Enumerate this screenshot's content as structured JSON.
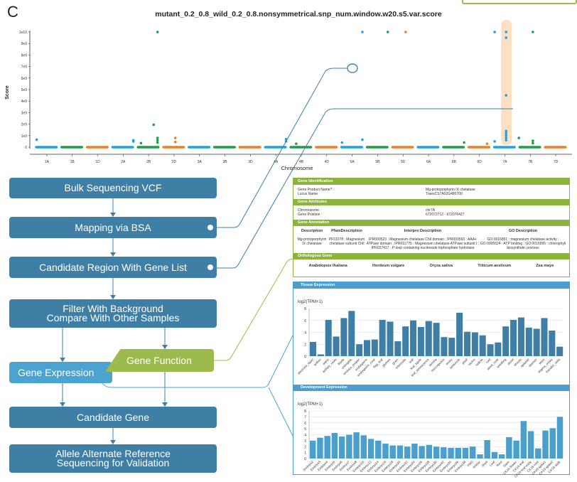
{
  "panel_label": "C",
  "chart_data": [
    {
      "type": "scatter",
      "title": "mutant_0.2_0.8_wild_0.2_0.8.nonsymmetrical.snp_num.window.w20.s5.var.score",
      "xlabel": "Chromosome",
      "ylabel": "Score",
      "ylim": [
        0,
        10000000000
      ],
      "yticks": [
        "0",
        "1e9",
        "2e9",
        "3e9",
        "4e9",
        "5e9",
        "6e9",
        "7e9",
        "8e9",
        "9e9",
        "1e10"
      ],
      "categories": [
        "1A",
        "1B",
        "1D",
        "2A",
        "2B",
        "2D",
        "3A",
        "3B",
        "3D",
        "4A",
        "4B",
        "4D",
        "5A",
        "5B",
        "5D",
        "6A",
        "6B",
        "6D",
        "7A",
        "7B",
        "7D"
      ],
      "colors": {
        "A": "#1aa3e8",
        "B": "#1e9e4a",
        "D": "#f07f22"
      },
      "highlight_chromosome": "7A",
      "highlight_color": "#fbe0c3",
      "baseline_score": 0,
      "outliers": [
        {
          "chr": "1A",
          "pos": 0.1,
          "score": 650000000
        },
        {
          "chr": "2A",
          "pos": 0.9,
          "score": 600000000
        },
        {
          "chr": "2A",
          "pos": 0.9,
          "score": 500000000
        },
        {
          "chr": "2B",
          "pos": 0.2,
          "score": 350000000
        },
        {
          "chr": "2B",
          "pos": 0.7,
          "score": 1950000000
        },
        {
          "chr": "2B",
          "pos": 0.85,
          "score": 10000000000
        },
        {
          "chr": "2B",
          "pos": 0.85,
          "score": 800000000
        },
        {
          "chr": "2B",
          "pos": 0.85,
          "score": 600000000
        },
        {
          "chr": "2B",
          "pos": 0.85,
          "score": 400000000
        },
        {
          "chr": "2D",
          "pos": 0.55,
          "score": 800000000
        },
        {
          "chr": "2D",
          "pos": 0.55,
          "score": 450000000
        },
        {
          "chr": "4A",
          "pos": 0.9,
          "score": 700000000
        },
        {
          "chr": "4A",
          "pos": 0.9,
          "score": 500000000
        },
        {
          "chr": "4B",
          "pos": 0.3,
          "score": 300000000
        },
        {
          "chr": "5A",
          "pos": 0.1,
          "score": 400000000
        },
        {
          "chr": "5A",
          "pos": 0.9,
          "score": 10000000000
        },
        {
          "chr": "5A",
          "pos": 0.9,
          "score": 650000000
        },
        {
          "chr": "5B",
          "pos": 0.9,
          "score": 10000000000
        },
        {
          "chr": "5D",
          "pos": 0.6,
          "score": 10000000000
        },
        {
          "chr": "6B",
          "pos": 0.9,
          "score": 400000000
        },
        {
          "chr": "6D",
          "pos": 0.8,
          "score": 300000000
        },
        {
          "chr": "7A",
          "pos": 0.1,
          "score": 10000000000
        },
        {
          "chr": "7A",
          "pos": 0.1,
          "score": 500000000
        },
        {
          "chr": "7A",
          "pos": 0.55,
          "score": 10000000000
        },
        {
          "chr": "7A",
          "pos": 0.55,
          "score": 9500000000
        },
        {
          "chr": "7A",
          "pos": 0.55,
          "score": 4500000000
        },
        {
          "chr": "7A",
          "pos": 0.55,
          "score": 1400000000
        },
        {
          "chr": "7A",
          "pos": 0.55,
          "score": 1200000000
        },
        {
          "chr": "7A",
          "pos": 0.55,
          "score": 1000000000
        },
        {
          "chr": "7A",
          "pos": 0.55,
          "score": 800000000
        },
        {
          "chr": "7A",
          "pos": 0.55,
          "score": 600000000
        },
        {
          "chr": "7B",
          "pos": 0.05,
          "score": 800000000
        },
        {
          "chr": "7B",
          "pos": 0.6,
          "score": 10000000000
        },
        {
          "chr": "7B",
          "pos": 0.6,
          "score": 550000000
        },
        {
          "chr": "7B",
          "pos": 0.6,
          "score": 350000000
        }
      ]
    },
    {
      "type": "bar",
      "title": "Tissue Expression",
      "ylabel": "log2(TPM+1)",
      "ylim": [
        0,
        8
      ],
      "yticks": [
        0,
        2,
        4,
        6,
        8
      ],
      "color": "#3f7fa6",
      "categories": [
        "aleurone_layer",
        "anther",
        "awns",
        "axillary_roots",
        "blade",
        "coleoptile",
        "embryo_proper",
        "endosperm",
        "endosperm_coat",
        "flag_leaf",
        "glumes",
        "grain",
        "internode",
        "leaf",
        "leaf_ligule",
        "leaf_senescence",
        "lemma",
        "microspores",
        "ovary",
        "peduncle",
        "pistil",
        "rachis",
        "radicle",
        "root",
        "seed_coat",
        "seedling",
        "shoot",
        "shoots",
        "spikelet",
        "stamen",
        "stem",
        "stigma_ovary",
        "transfer_cells"
      ],
      "values": [
        2.4,
        0.3,
        6.1,
        3.3,
        6.4,
        7.6,
        2.0,
        2.7,
        2.8,
        6.1,
        5.8,
        2.5,
        5.0,
        6.0,
        4.9,
        5.9,
        5.6,
        3.2,
        3.1,
        7.3,
        4.1,
        4.0,
        3.5,
        2.0,
        2.3,
        5.0,
        6.1,
        6.5,
        4.8,
        4.6,
        6.4,
        4.3,
        1.6
      ]
    },
    {
      "type": "bar",
      "title": "Development Expression",
      "ylabel": "log2(TPM+1)",
      "ylim": [
        0,
        8
      ],
      "yticks": [
        0,
        1,
        2,
        3,
        4,
        5,
        6,
        7,
        8
      ],
      "color": "#4a9fcc",
      "categories": [
        "Embryo2",
        "Embryo3",
        "Embryo4",
        "Embryo5",
        "Embryo6",
        "Embryo7",
        "Embryo8",
        "Embryo10",
        "Embryo12",
        "Embryo14",
        "Embryo16",
        "Embryo18",
        "Embryo20",
        "Embryo22",
        "Embryo24",
        "Embryo26",
        "Embryo28",
        "Embryo30",
        "Embryo32",
        "Embryo34",
        "Embryo36",
        "Embryo38",
        "FMS",
        "Anther",
        "Shell",
        "Leaf",
        "Root",
        "Stem",
        "CK16-flower",
        "CK16-leaf",
        "CK16-leaf-early",
        "CK16-root",
        "CK16-spike1",
        "CK16-spike2",
        "CK16-stalk"
      ],
      "values": [
        3.0,
        3.5,
        3.8,
        4.3,
        3.7,
        4.0,
        4.4,
        3.9,
        3.3,
        3.0,
        2.5,
        2.2,
        2.2,
        2.0,
        2.5,
        2.1,
        2.3,
        2.0,
        1.9,
        1.8,
        1.8,
        1.8,
        2.0,
        0.7,
        3.1,
        1.1,
        0.7,
        3.6,
        3.0,
        6.3,
        4.6,
        1.7,
        4.7,
        5.1,
        7.0
      ]
    }
  ],
  "flow": {
    "bulk": "Bulk Sequencing VCF",
    "mapping": "Mapping via BSA",
    "region": "Candidate Region With Gene List",
    "filter1": "Filter With Background",
    "filter2": "Compare With Other Samples",
    "expression": "Gene Expression",
    "function": "Gene Function",
    "candidate": "Candidate Gene",
    "allele1": "Allele Alternate Reference",
    "allele2": "Sequencing for Validation"
  },
  "gene_info": {
    "identification": {
      "header": "Gene Identification",
      "product_label": "Gene Product Name? :",
      "product_value": "Mg-protoporphyrin IX chelatase",
      "locus_label": "Locus Name :",
      "locus_value": "TraesCS7A02G480700"
    },
    "attributes": {
      "header": "Gene Attributes",
      "chrom_label": "Chromosome :",
      "chrom_value": "chr7A",
      "pos_label": "Gene Position :",
      "pos_value": "672072712 - 672076427"
    },
    "annotation": {
      "header": "Gene Annotation",
      "cols": [
        "Description",
        "PfamDescription",
        "Interpro Description",
        "GO Description"
      ],
      "values": [
        "Mg-protoporphyrin IX chelatase",
        "PF01078 : Magnesium chelatase subunit ChlI",
        "IPR000523 : Magnesium chelatase ChlI domain ; IPR003593 : AAA+ ATPase domain ; IPR011775 : Magnesium chelatase ATPase subunit I ; IPR027417 : P-loop containing nucleoside triphosphate hydrolase",
        "GO:0016851 : magnesium chelatase activity ; GO:0005524 : ATP binding ; GO:0015995 : chlorophyll biosynthetic process"
      ]
    },
    "orthologous": {
      "header": "Orthologous Gene",
      "species": [
        "Arabidopsis thaliana",
        "Hordeum vulgare",
        "Oryza sativa",
        "Triticum aestivum",
        "Zea mays"
      ]
    }
  },
  "colors": {
    "flow_box": "#3f7fa6",
    "expression": "#4aa3d0",
    "function": "#9dbb4c"
  }
}
